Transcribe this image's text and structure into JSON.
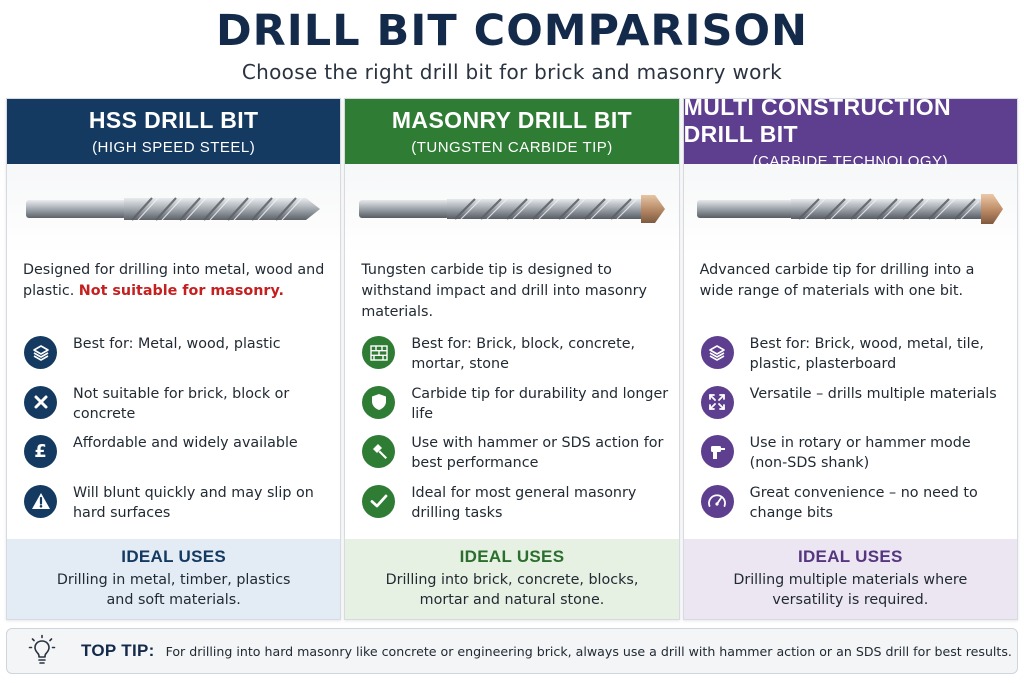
{
  "title": "DRILL BIT COMPARISON",
  "subtitle": "Choose the right drill bit for brick and masonry work",
  "colors": {
    "hss": "#143a61",
    "masonry": "#2f7c34",
    "multi": "#5e3e8e",
    "warning": "#c61f1f"
  },
  "cards": [
    {
      "title": "HSS DRILL BIT",
      "subtitle": "(HIGH SPEED STEEL)",
      "description": "Designed for drilling into metal, wood and plastic.",
      "warning": "Not suitable for masonry.",
      "features": [
        {
          "icon": "layers-icon",
          "text": "Best for: Metal, wood, plastic"
        },
        {
          "icon": "x-icon",
          "text": "Not suitable for brick, block or concrete"
        },
        {
          "icon": "pound-icon",
          "text": "Affordable and widely available"
        },
        {
          "icon": "warning-icon",
          "text": "Will blunt quickly and may slip on hard surfaces"
        }
      ],
      "ideal_title": "IDEAL USES",
      "ideal_text": "Drilling in metal, timber, plastics and soft materials."
    },
    {
      "title": "MASONRY DRILL BIT",
      "subtitle": "(TUNGSTEN CARBIDE TIP)",
      "description": "Tungsten carbide tip is designed to withstand impact and drill into masonry materials.",
      "warning": "",
      "features": [
        {
          "icon": "brick-wall-icon",
          "text": "Best for: Brick, block, concrete, mortar, stone"
        },
        {
          "icon": "shield-icon",
          "text": "Carbide tip for durability and longer life"
        },
        {
          "icon": "hammer-icon",
          "text": "Use with hammer or SDS action for best performance"
        },
        {
          "icon": "check-icon",
          "text": "Ideal for most general masonry drilling tasks"
        }
      ],
      "ideal_title": "IDEAL USES",
      "ideal_text": "Drilling into brick, concrete, blocks, mortar and natural stone."
    },
    {
      "title": "MULTI CONSTRUCTION DRILL BIT",
      "subtitle": "(CARBIDE TECHNOLOGY)",
      "description": "Advanced carbide tip for drilling into a wide range of materials with one bit.",
      "warning": "",
      "features": [
        {
          "icon": "layers-icon",
          "text": "Best for: Brick, wood, metal, tile, plastic, plasterboard"
        },
        {
          "icon": "arrows-out-icon",
          "text": "Versatile – drills multiple materials"
        },
        {
          "icon": "drill-icon",
          "text": "Use in rotary or hammer mode (non-SDS shank)"
        },
        {
          "icon": "gauge-icon",
          "text": "Great convenience – no need to change bits"
        }
      ],
      "ideal_title": "IDEAL USES",
      "ideal_text": "Drilling multiple materials where versatility is required."
    }
  ],
  "tip": {
    "icon": "lightbulb-icon",
    "label": "TOP TIP:",
    "text": "For drilling into hard masonry like concrete or engineering brick, always use a drill with hammer action or an SDS drill for best results."
  }
}
